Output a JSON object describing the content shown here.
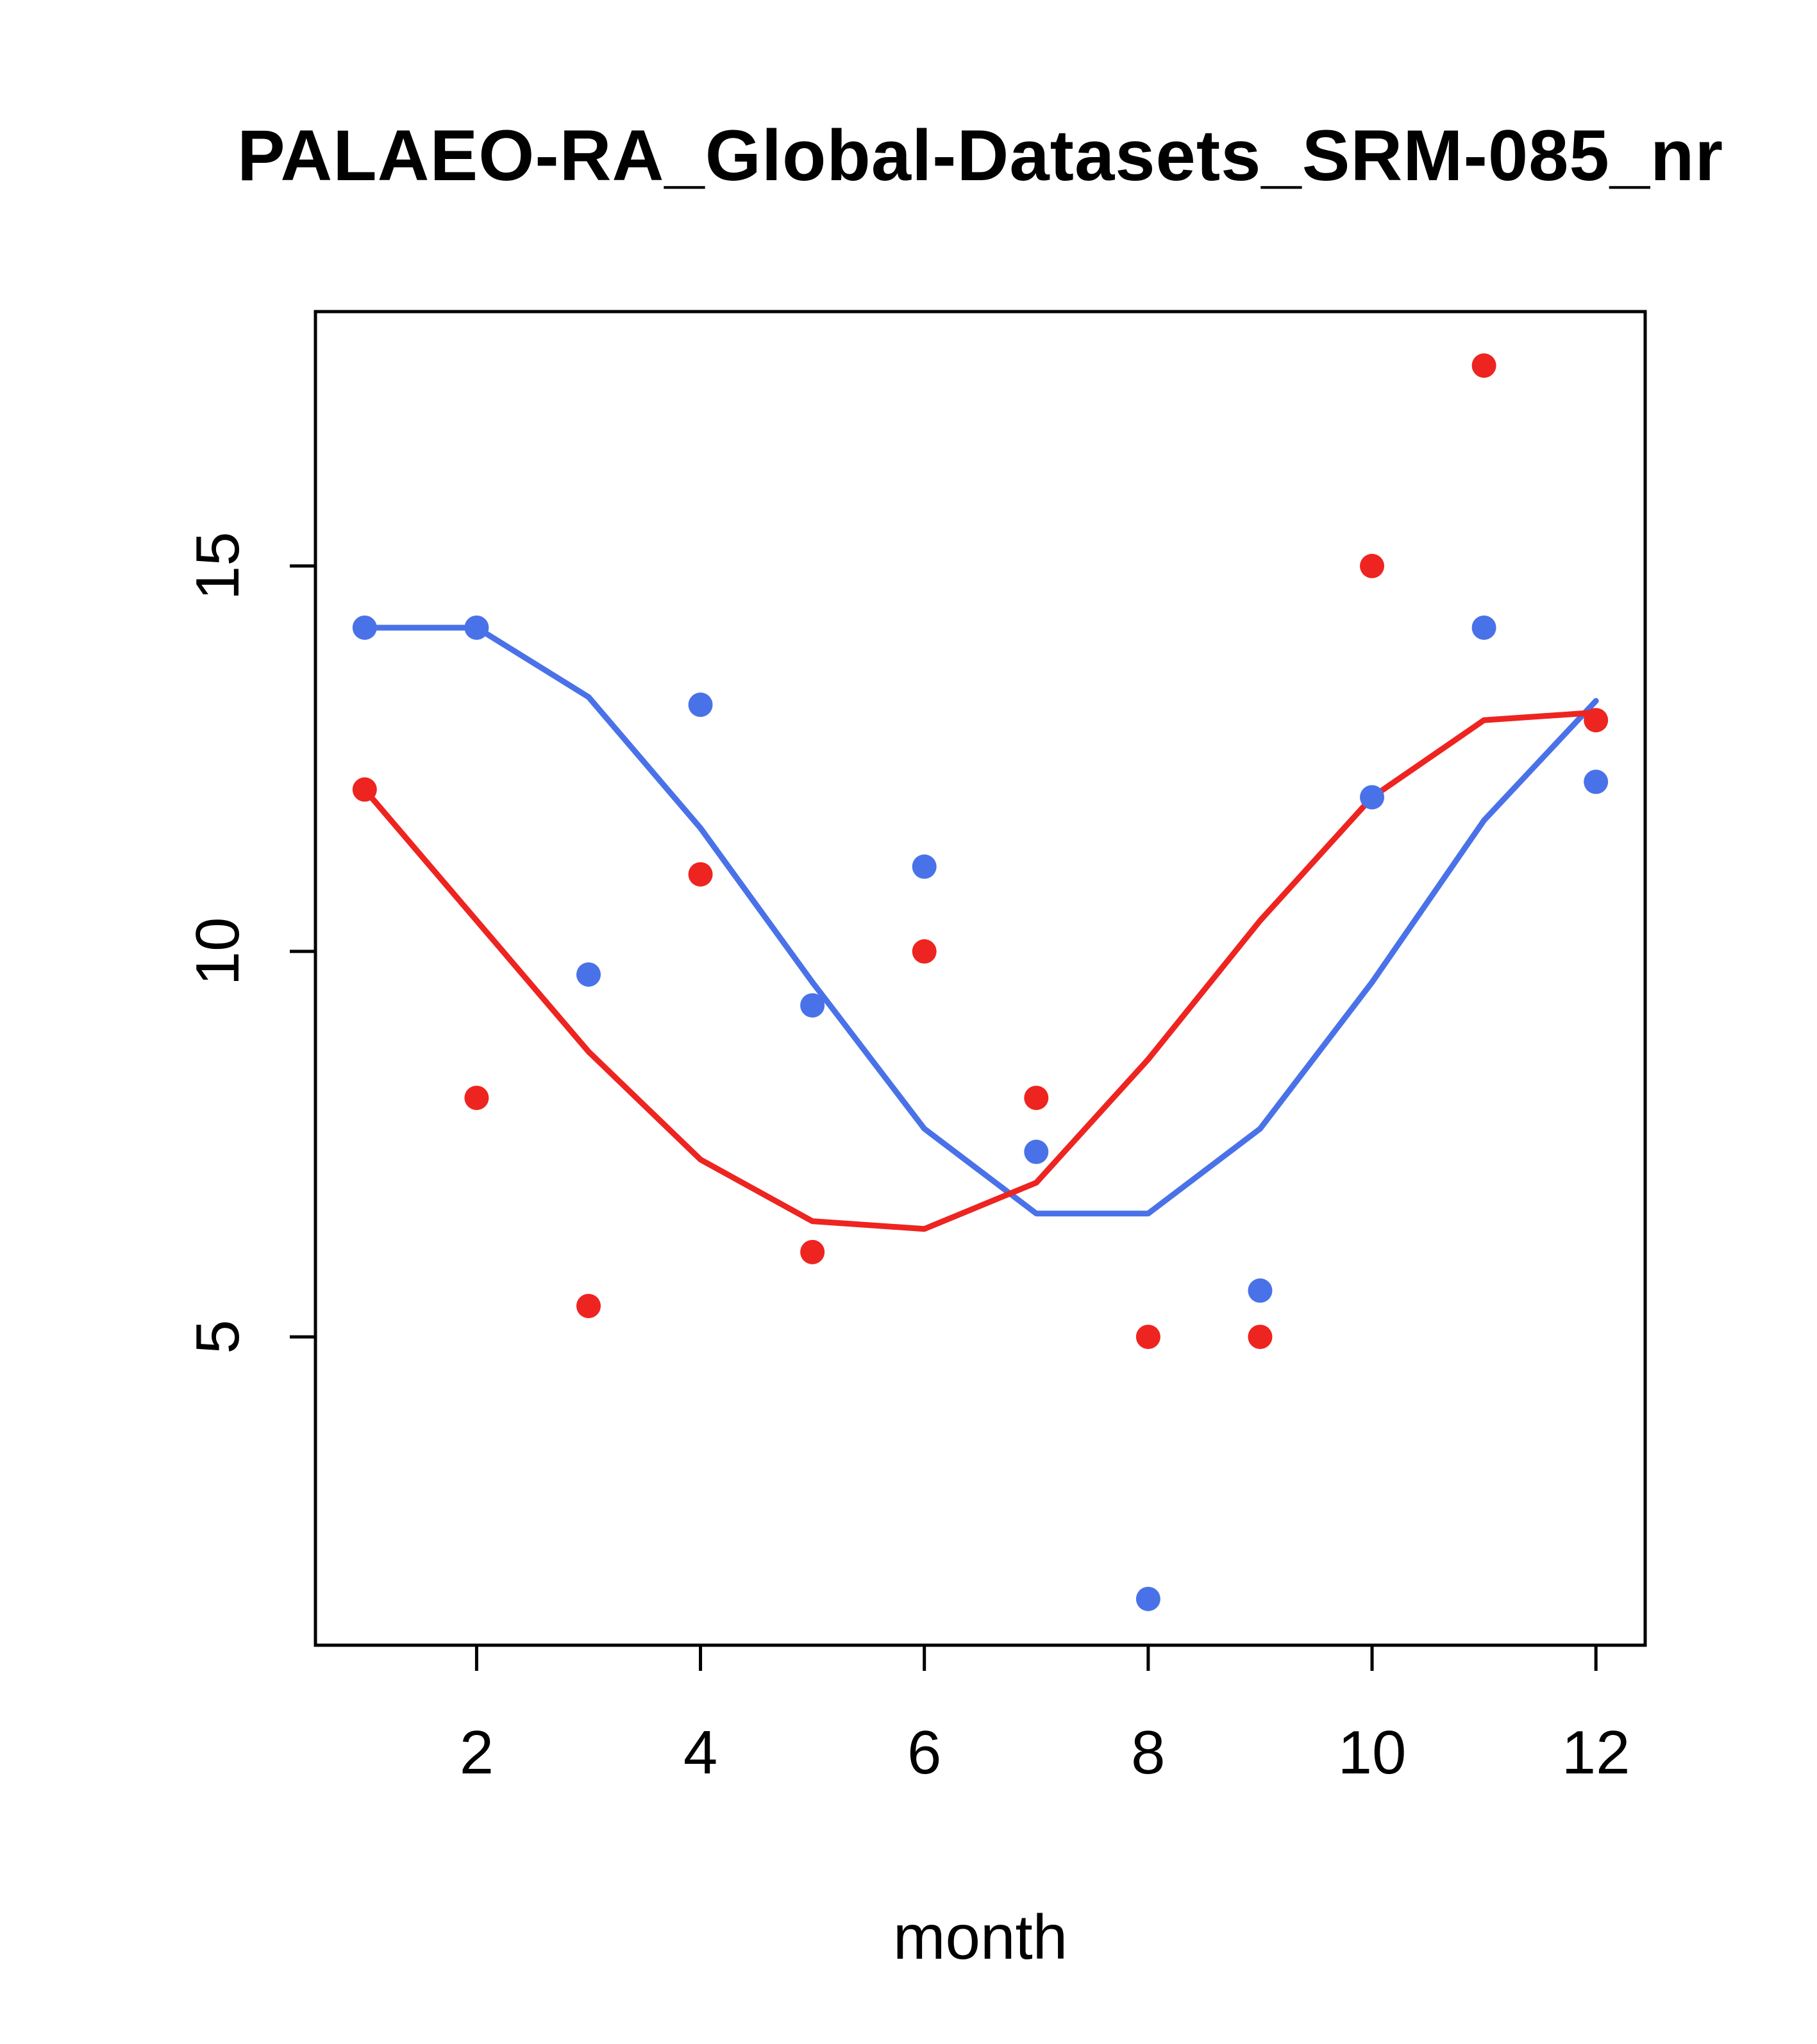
{
  "title": "PALAEO-RA_Global-Datasets_SRM-085_nr",
  "chart_data": {
    "type": "scatter",
    "title": "PALAEO-RA_Global-Datasets_SRM-085_nr",
    "xlabel": "month",
    "ylabel": "",
    "x": [
      1,
      2,
      3,
      4,
      5,
      6,
      7,
      8,
      9,
      10,
      11,
      12
    ],
    "x_ticks": [
      2,
      4,
      6,
      8,
      10,
      12
    ],
    "y_ticks": [
      5,
      10,
      15
    ],
    "xlim": [
      0.56,
      12.44
    ],
    "ylim": [
      1.0,
      18.3
    ],
    "grid": false,
    "legend": "none",
    "colors": {
      "blue": "#4a72e8",
      "red": "#ee2420",
      "axis": "#000000"
    },
    "series": [
      {
        "name": "blue-points",
        "kind": "points",
        "color": "#4a72e8",
        "values": [
          14.2,
          14.2,
          9.7,
          13.2,
          9.3,
          11.1,
          7.4,
          1.6,
          5.6,
          12.0,
          14.2,
          12.2
        ]
      },
      {
        "name": "red-points",
        "kind": "points",
        "color": "#ee2420",
        "values": [
          12.1,
          8.1,
          5.4,
          11.0,
          6.1,
          10.0,
          8.1,
          5.0,
          5.0,
          15.0,
          17.6,
          13.0
        ]
      },
      {
        "name": "blue-smooth-line",
        "kind": "line",
        "color": "#4a72e8",
        "values": [
          14.2,
          14.2,
          13.3,
          11.6,
          9.6,
          7.7,
          6.6,
          6.6,
          7.7,
          9.6,
          11.7,
          13.25
        ]
      },
      {
        "name": "red-smooth-line",
        "kind": "line",
        "color": "#ee2420",
        "values": [
          12.1,
          10.4,
          8.7,
          7.3,
          6.5,
          6.4,
          7.0,
          8.6,
          10.4,
          12.0,
          13.0,
          13.1
        ]
      }
    ]
  }
}
